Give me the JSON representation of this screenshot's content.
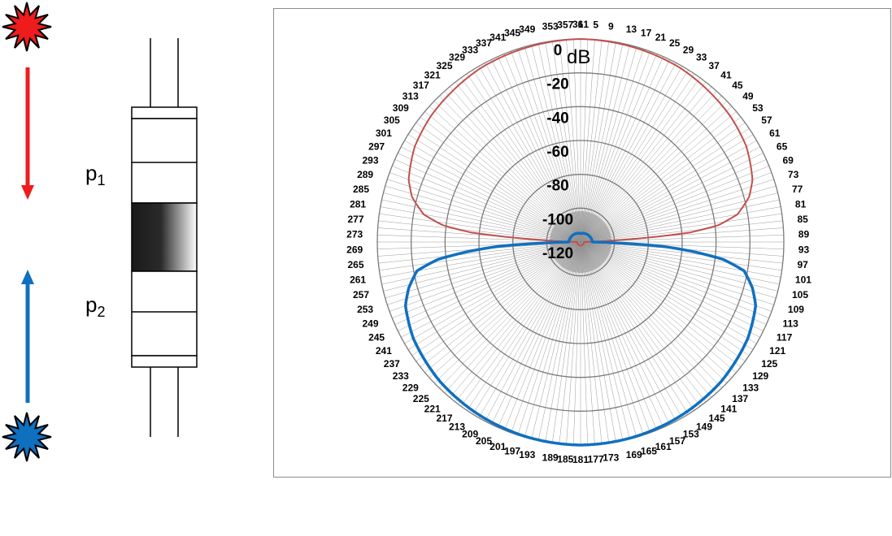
{
  "diagram": {
    "labels": {
      "p1": "p",
      "p1_sub": "1",
      "p2": "p",
      "p2_sub": "2"
    },
    "colors": {
      "red": "#ee1c1c",
      "blue": "#1070c0",
      "black": "#000000"
    }
  },
  "chart_data": {
    "type": "polar-line",
    "unit_label": "dB",
    "radial_ticks": [
      "0",
      "-20",
      "-40",
      "-60",
      "-80",
      "-100",
      "-120"
    ],
    "rlim": [
      -120,
      0
    ],
    "angle_labels": [
      "1",
      "5",
      "9",
      "13",
      "17",
      "21",
      "25",
      "29",
      "33",
      "37",
      "41",
      "45",
      "49",
      "53",
      "57",
      "61",
      "65",
      "69",
      "73",
      "77",
      "81",
      "85",
      "89",
      "93",
      "97",
      "101",
      "105",
      "109",
      "113",
      "117",
      "121",
      "125",
      "129",
      "133",
      "137",
      "141",
      "145",
      "149",
      "153",
      "157",
      "161",
      "165",
      "169",
      "173",
      "177",
      "181",
      "185",
      "189",
      "193",
      "197",
      "201",
      "205",
      "209",
      "213",
      "217",
      "221",
      "225",
      "229",
      "233",
      "237",
      "241",
      "245",
      "249",
      "253",
      "257",
      "261",
      "265",
      "269",
      "273",
      "277",
      "281",
      "285",
      "289",
      "293",
      "297",
      "301",
      "305",
      "309",
      "313",
      "317",
      "321",
      "325",
      "329",
      "333",
      "337",
      "341",
      "345",
      "349",
      "353",
      "357",
      "361"
    ],
    "grid": true,
    "series": [
      {
        "color": "#c0504d",
        "points": [
          [
            0,
            0
          ],
          [
            30,
            -1.5
          ],
          [
            50,
            -4.5
          ],
          [
            60,
            -7
          ],
          [
            70,
            -12
          ],
          [
            75,
            -17
          ],
          [
            80,
            -26
          ],
          [
            83,
            -38
          ],
          [
            85,
            -55
          ],
          [
            86,
            -75
          ],
          [
            87,
            -95
          ],
          [
            88,
            -108
          ],
          [
            89,
            -115
          ],
          [
            90,
            -118
          ],
          [
            180,
            -118
          ],
          [
            270,
            -118
          ],
          [
            271,
            -115
          ],
          [
            272,
            -108
          ],
          [
            273,
            -95
          ],
          [
            274,
            -75
          ],
          [
            275,
            -55
          ],
          [
            277,
            -38
          ],
          [
            280,
            -26
          ],
          [
            285,
            -17
          ],
          [
            290,
            -12
          ],
          [
            300,
            -7
          ],
          [
            310,
            -4.5
          ],
          [
            330,
            -1.5
          ],
          [
            360,
            0
          ]
        ]
      },
      {
        "color": "#1070c0",
        "points": [
          [
            0,
            -115
          ],
          [
            90,
            -113
          ],
          [
            91,
            -105
          ],
          [
            92,
            -90
          ],
          [
            93,
            -72
          ],
          [
            95,
            -52
          ],
          [
            97,
            -35
          ],
          [
            100,
            -22
          ],
          [
            105,
            -15
          ],
          [
            110,
            -10
          ],
          [
            120,
            -6
          ],
          [
            135,
            -3
          ],
          [
            150,
            -1.5
          ],
          [
            165,
            -0.5
          ],
          [
            180,
            0
          ],
          [
            195,
            -0.5
          ],
          [
            210,
            -1.5
          ],
          [
            225,
            -3
          ],
          [
            240,
            -6
          ],
          [
            250,
            -10
          ],
          [
            255,
            -15
          ],
          [
            260,
            -22
          ],
          [
            263,
            -35
          ],
          [
            265,
            -52
          ],
          [
            267,
            -72
          ],
          [
            268,
            -90
          ],
          [
            269,
            -105
          ],
          [
            270,
            -113
          ],
          [
            360,
            -115
          ]
        ]
      }
    ]
  }
}
